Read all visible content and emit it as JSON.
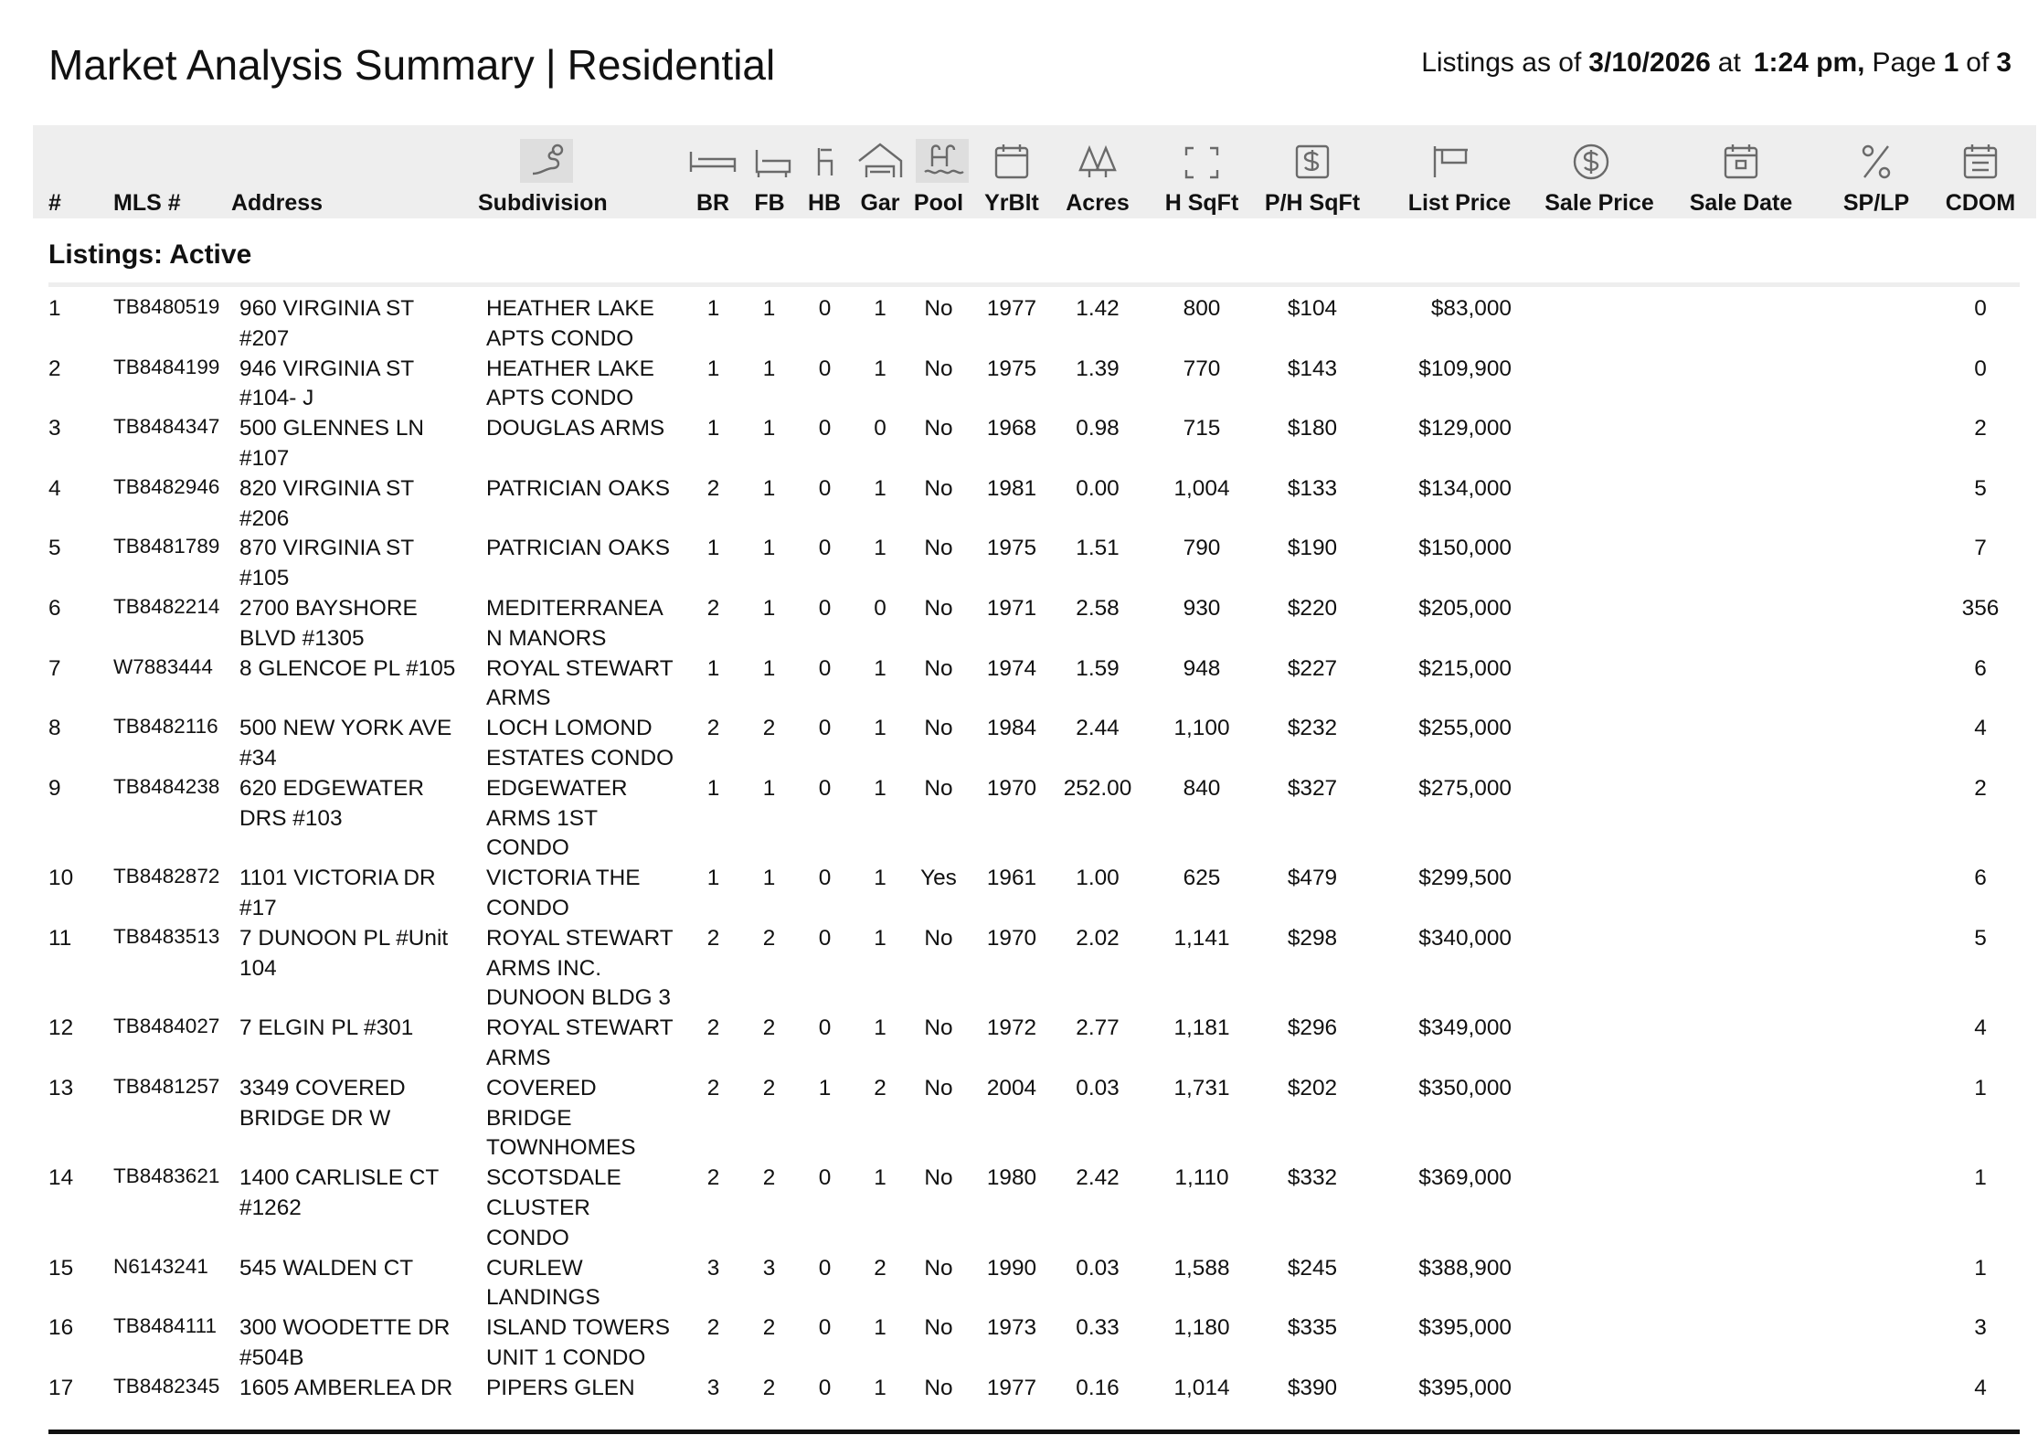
{
  "header": {
    "title": "Market Analysis Summary",
    "separator": "|",
    "report_type": "Residential",
    "listings_as_of_label": "Listings as of",
    "date": "3/10/2026",
    "at_label": "at",
    "time": "1:24 pm,",
    "page_label": "Page",
    "page": "1",
    "of_label": "of",
    "page_count": "3"
  },
  "columns": [
    "#",
    "MLS #",
    "Address",
    "Subdivision",
    "BR",
    "FB",
    "HB",
    "Gar",
    "Pool",
    "YrBlt",
    "Acres",
    "H SqFt",
    "P/H SqFt",
    "List Price",
    "Sale Price",
    "Sale Date",
    "SP/LP",
    "CDOM"
  ],
  "section": "Listings: Active",
  "rows": [
    {
      "num": "1",
      "mls": "TB8480519",
      "address": "960 VIRGINIA ST #207",
      "subdivision": "HEATHER LAKE APTS CONDO",
      "br": "1",
      "fb": "1",
      "hb": "0",
      "gar": "1",
      "pool": "No",
      "yrblt": "1977",
      "acres": "1.42",
      "hsqft": "800",
      "ph_sqft": "$104",
      "list_price": "$83,000",
      "cdom": "0"
    },
    {
      "num": "2",
      "mls": "TB8484199",
      "address": "946 VIRGINIA ST #104- J",
      "subdivision": "HEATHER LAKE APTS CONDO",
      "br": "1",
      "fb": "1",
      "hb": "0",
      "gar": "1",
      "pool": "No",
      "yrblt": "1975",
      "acres": "1.39",
      "hsqft": "770",
      "ph_sqft": "$143",
      "list_price": "$109,900",
      "cdom": "0"
    },
    {
      "num": "3",
      "mls": "TB8484347",
      "address": "500 GLENNES LN #107",
      "subdivision": "DOUGLAS ARMS",
      "br": "1",
      "fb": "1",
      "hb": "0",
      "gar": "0",
      "pool": "No",
      "yrblt": "1968",
      "acres": "0.98",
      "hsqft": "715",
      "ph_sqft": "$180",
      "list_price": "$129,000",
      "cdom": "2"
    },
    {
      "num": "4",
      "mls": "TB8482946",
      "address": "820 VIRGINIA ST #206",
      "subdivision": "PATRICIAN OAKS",
      "br": "2",
      "fb": "1",
      "hb": "0",
      "gar": "1",
      "pool": "No",
      "yrblt": "1981",
      "acres": "0.00",
      "hsqft": "1,004",
      "ph_sqft": "$133",
      "list_price": "$134,000",
      "cdom": "5"
    },
    {
      "num": "5",
      "mls": "TB8481789",
      "address": "870 VIRGINIA ST #105",
      "subdivision": "PATRICIAN OAKS",
      "br": "1",
      "fb": "1",
      "hb": "0",
      "gar": "1",
      "pool": "No",
      "yrblt": "1975",
      "acres": "1.51",
      "hsqft": "790",
      "ph_sqft": "$190",
      "list_price": "$150,000",
      "cdom": "7"
    },
    {
      "num": "6",
      "mls": "TB8482214",
      "address": "2700 BAYSHORE BLVD #1305",
      "subdivision": "MEDITERRANEAN MANORS",
      "br": "2",
      "fb": "1",
      "hb": "0",
      "gar": "0",
      "pool": "No",
      "yrblt": "1971",
      "acres": "2.58",
      "hsqft": "930",
      "ph_sqft": "$220",
      "list_price": "$205,000",
      "cdom": "356"
    },
    {
      "num": "7",
      "mls": "W7883444",
      "address": "8 GLENCOE PL #105",
      "subdivision": "ROYAL STEWART ARMS",
      "br": "1",
      "fb": "1",
      "hb": "0",
      "gar": "1",
      "pool": "No",
      "yrblt": "1974",
      "acres": "1.59",
      "hsqft": "948",
      "ph_sqft": "$227",
      "list_price": "$215,000",
      "cdom": "6"
    },
    {
      "num": "8",
      "mls": "TB8482116",
      "address": "500 NEW YORK AVE #34",
      "subdivision": "LOCH LOMOND ESTATES CONDO",
      "br": "2",
      "fb": "2",
      "hb": "0",
      "gar": "1",
      "pool": "No",
      "yrblt": "1984",
      "acres": "2.44",
      "hsqft": "1,100",
      "ph_sqft": "$232",
      "list_price": "$255,000",
      "cdom": "4"
    },
    {
      "num": "9",
      "mls": "TB8484238",
      "address": "620 EDGEWATER DRS #103",
      "subdivision": "EDGEWATER ARMS 1ST CONDO",
      "br": "1",
      "fb": "1",
      "hb": "0",
      "gar": "1",
      "pool": "No",
      "yrblt": "1970",
      "acres": "252.00",
      "hsqft": "840",
      "ph_sqft": "$327",
      "list_price": "$275,000",
      "cdom": "2"
    },
    {
      "num": "10",
      "mls": "TB8482872",
      "address": "1101 VICTORIA DR #17",
      "subdivision": "VICTORIA THE CONDO",
      "br": "1",
      "fb": "1",
      "hb": "0",
      "gar": "1",
      "pool": "Yes",
      "yrblt": "1961",
      "acres": "1.00",
      "hsqft": "625",
      "ph_sqft": "$479",
      "list_price": "$299,500",
      "cdom": "6"
    },
    {
      "num": "11",
      "mls": "TB8483513",
      "address": "7 DUNOON PL #Unit 104",
      "subdivision": "ROYAL STEWART ARMS INC. DUNOON BLDG 3",
      "br": "2",
      "fb": "2",
      "hb": "0",
      "gar": "1",
      "pool": "No",
      "yrblt": "1970",
      "acres": "2.02",
      "hsqft": "1,141",
      "ph_sqft": "$298",
      "list_price": "$340,000",
      "cdom": "5"
    },
    {
      "num": "12",
      "mls": "TB8484027",
      "address": "7 ELGIN PL #301",
      "subdivision": "ROYAL STEWART ARMS",
      "br": "2",
      "fb": "2",
      "hb": "0",
      "gar": "1",
      "pool": "No",
      "yrblt": "1972",
      "acres": "2.77",
      "hsqft": "1,181",
      "ph_sqft": "$296",
      "list_price": "$349,000",
      "cdom": "4"
    },
    {
      "num": "13",
      "mls": "TB8481257",
      "address": "3349 COVERED BRIDGE DR W",
      "subdivision": "COVERED BRIDGE TOWNHOMES",
      "br": "2",
      "fb": "2",
      "hb": "1",
      "gar": "2",
      "pool": "No",
      "yrblt": "2004",
      "acres": "0.03",
      "hsqft": "1,731",
      "ph_sqft": "$202",
      "list_price": "$350,000",
      "cdom": "1"
    },
    {
      "num": "14",
      "mls": "TB8483621",
      "address": "1400 CARLISLE CT #1262",
      "subdivision": "SCOTSDALE CLUSTER CONDO",
      "br": "2",
      "fb": "2",
      "hb": "0",
      "gar": "1",
      "pool": "No",
      "yrblt": "1980",
      "acres": "2.42",
      "hsqft": "1,110",
      "ph_sqft": "$332",
      "list_price": "$369,000",
      "cdom": "1"
    },
    {
      "num": "15",
      "mls": "N6143241",
      "address": "545 WALDEN CT",
      "subdivision": "CURLEW LANDINGS",
      "br": "3",
      "fb": "3",
      "hb": "0",
      "gar": "2",
      "pool": "No",
      "yrblt": "1990",
      "acres": "0.03",
      "hsqft": "1,588",
      "ph_sqft": "$245",
      "list_price": "$388,900",
      "cdom": "1"
    },
    {
      "num": "16",
      "mls": "TB8484111",
      "address": "300 WOODETTE DR #504B",
      "subdivision": "ISLAND TOWERS UNIT 1 CONDO",
      "br": "2",
      "fb": "2",
      "hb": "0",
      "gar": "1",
      "pool": "No",
      "yrblt": "1973",
      "acres": "0.33",
      "hsqft": "1,180",
      "ph_sqft": "$335",
      "list_price": "$395,000",
      "cdom": "3"
    },
    {
      "num": "17",
      "mls": "TB8482345",
      "address": "1605 AMBERLEA DR",
      "subdivision": "PIPERS GLEN",
      "br": "3",
      "fb": "2",
      "hb": "0",
      "gar": "1",
      "pool": "No",
      "yrblt": "1977",
      "acres": "0.16",
      "hsqft": "1,014",
      "ph_sqft": "$390",
      "list_price": "$395,000",
      "cdom": "4"
    }
  ]
}
